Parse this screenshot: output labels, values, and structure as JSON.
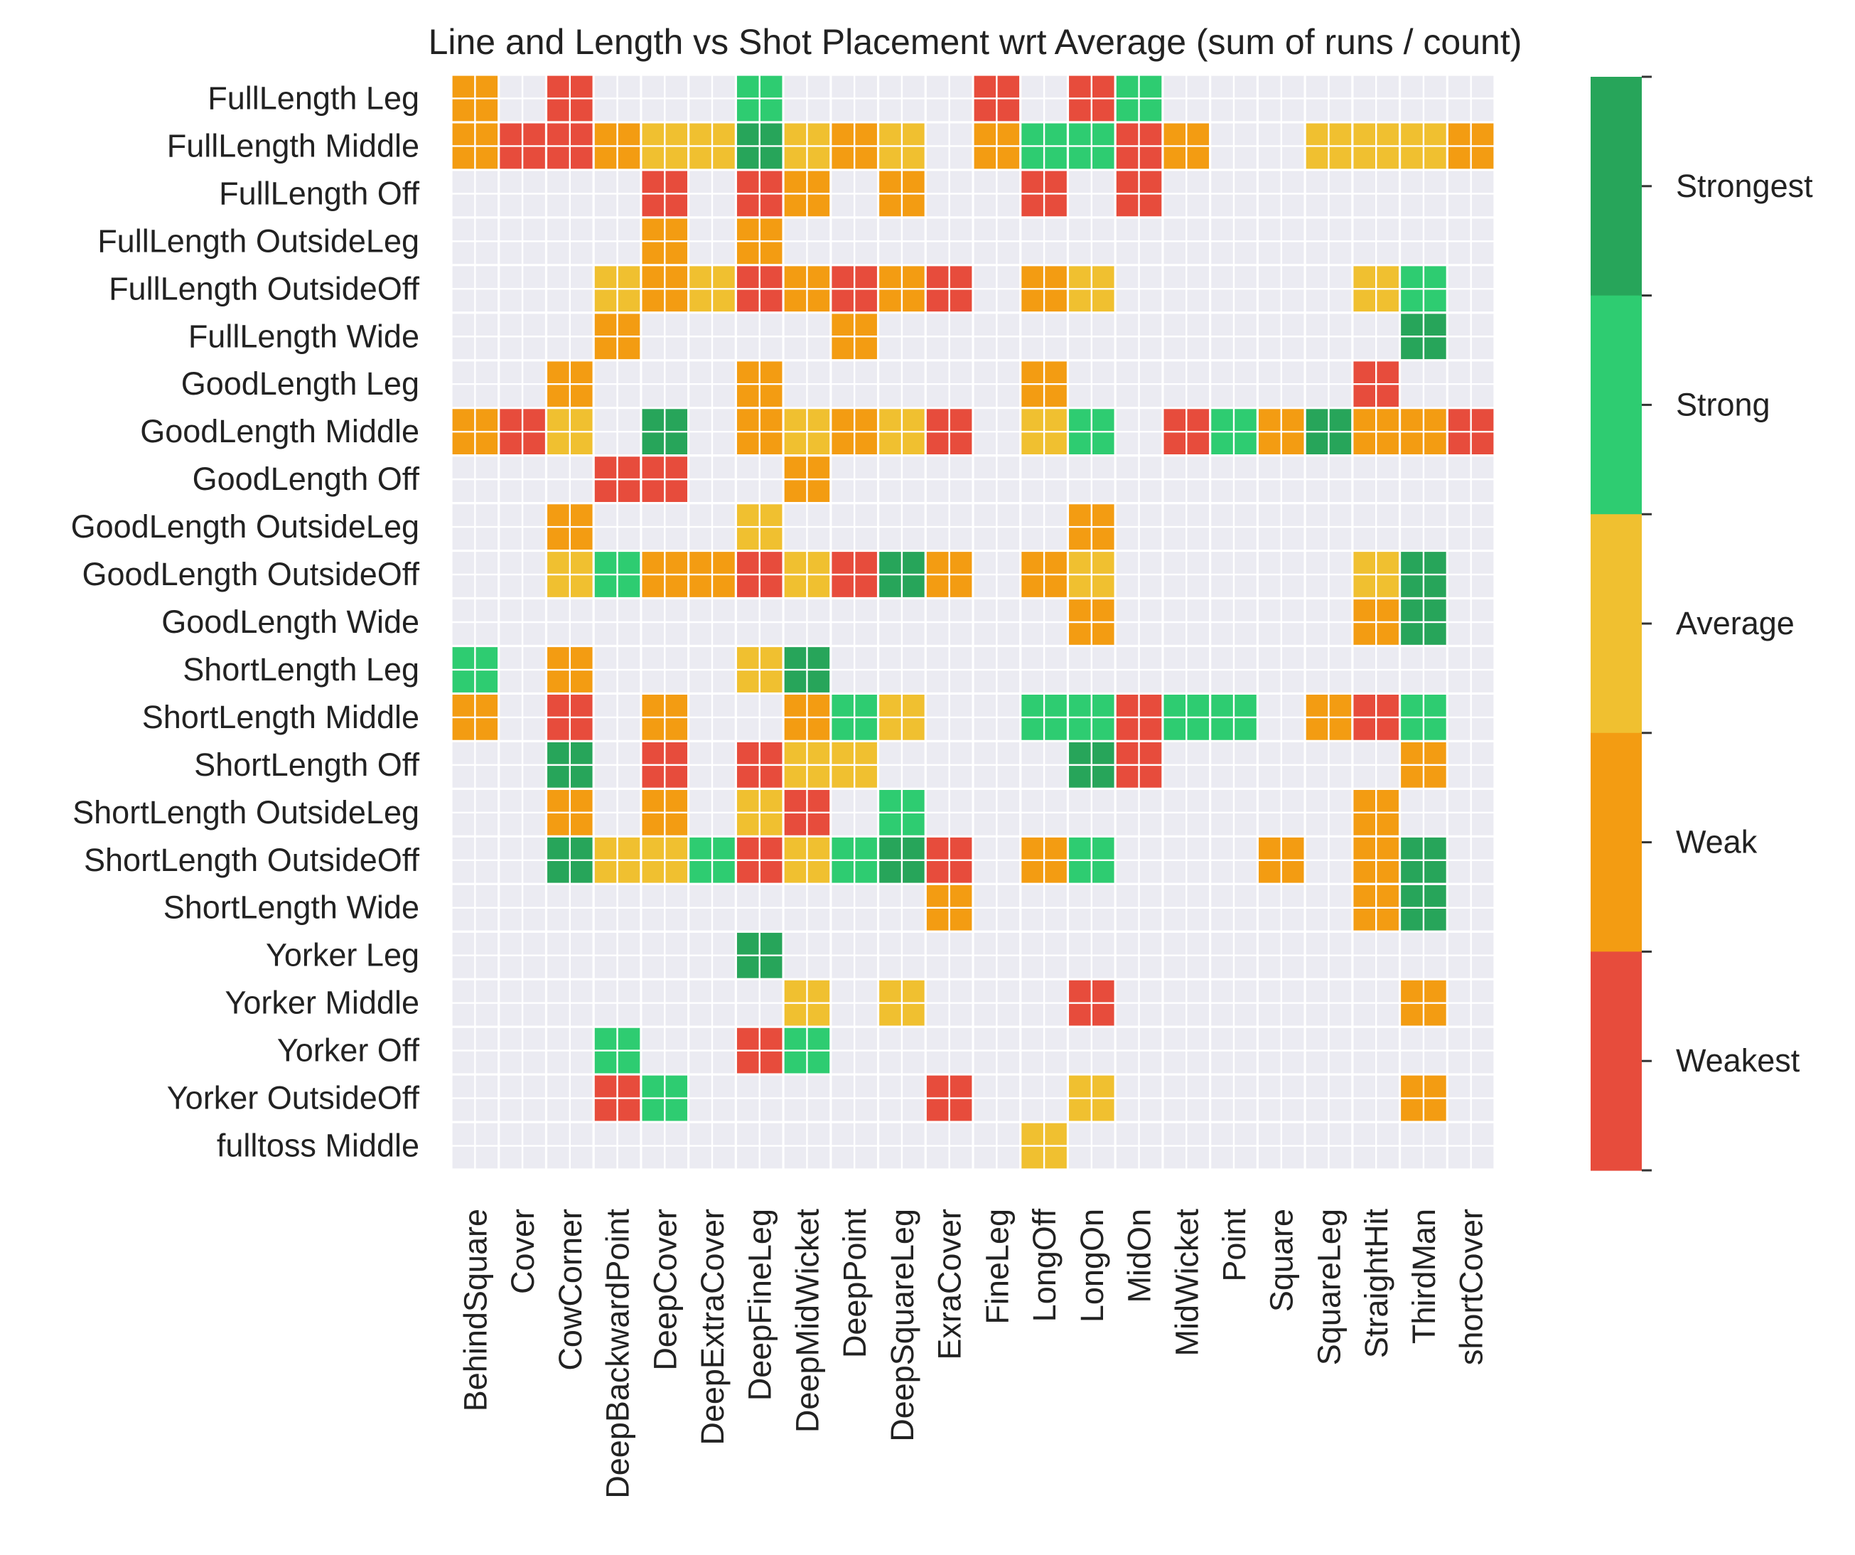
{
  "chart_data": {
    "type": "heatmap",
    "title": "Line and Length vs Shot Placement wrt Average (sum of runs / count)",
    "xlabel": "",
    "ylabel": "",
    "rows": [
      "FullLength Leg",
      "FullLength Middle",
      "FullLength Off",
      "FullLength OutsideLeg",
      "FullLength OutsideOff",
      "FullLength Wide",
      "GoodLength Leg",
      "GoodLength Middle",
      "GoodLength Off",
      "GoodLength OutsideLeg",
      "GoodLength OutsideOff",
      "GoodLength Wide",
      "ShortLength Leg",
      "ShortLength Middle",
      "ShortLength Off",
      "ShortLength OutsideLeg",
      "ShortLength OutsideOff",
      "ShortLength Wide",
      "Yorker Leg",
      "Yorker Middle",
      "Yorker Off",
      "Yorker OutsideOff",
      "fulltoss Middle"
    ],
    "columns": [
      "BehindSquare",
      "Cover",
      "CowCorner",
      "DeepBackwardPoint",
      "DeepCover",
      "DeepExtraCover",
      "DeepFineLeg",
      "DeepMidWicket",
      "DeepPoint",
      "DeepSquareLeg",
      "ExraCover",
      "FineLeg",
      "LongOff",
      "LongOn",
      "MidOn",
      "MidWicket",
      "Point",
      "Square",
      "SquareLeg",
      "StraightHit",
      "ThirdMan",
      "shortCover"
    ],
    "value_scale": {
      "1": "Weakest",
      "2": "Weak",
      "3": "Average",
      "4": "Strong",
      "5": "Strongest"
    },
    "values": [
      [
        2,
        0,
        1,
        0,
        0,
        0,
        4,
        0,
        0,
        0,
        0,
        1,
        0,
        1,
        4,
        0,
        0,
        0,
        0,
        0,
        0,
        0
      ],
      [
        2,
        1,
        1,
        2,
        3,
        3,
        5,
        3,
        2,
        3,
        0,
        2,
        4,
        4,
        1,
        2,
        0,
        0,
        3,
        3,
        3,
        2
      ],
      [
        0,
        0,
        0,
        0,
        1,
        0,
        1,
        2,
        0,
        2,
        0,
        0,
        1,
        0,
        1,
        0,
        0,
        0,
        0,
        0,
        0,
        0
      ],
      [
        0,
        0,
        0,
        0,
        2,
        0,
        2,
        0,
        0,
        0,
        0,
        0,
        0,
        0,
        0,
        0,
        0,
        0,
        0,
        0,
        0,
        0
      ],
      [
        0,
        0,
        0,
        3,
        2,
        3,
        1,
        2,
        1,
        2,
        1,
        0,
        2,
        3,
        0,
        0,
        0,
        0,
        0,
        3,
        4,
        0
      ],
      [
        0,
        0,
        0,
        2,
        0,
        0,
        0,
        0,
        2,
        0,
        0,
        0,
        0,
        0,
        0,
        0,
        0,
        0,
        0,
        0,
        5,
        0
      ],
      [
        0,
        0,
        2,
        0,
        0,
        0,
        2,
        0,
        0,
        0,
        0,
        0,
        2,
        0,
        0,
        0,
        0,
        0,
        0,
        1,
        0,
        0
      ],
      [
        2,
        1,
        3,
        0,
        5,
        0,
        2,
        3,
        2,
        3,
        1,
        0,
        3,
        4,
        0,
        1,
        4,
        2,
        5,
        2,
        2,
        1
      ],
      [
        0,
        0,
        0,
        1,
        1,
        0,
        0,
        2,
        0,
        0,
        0,
        0,
        0,
        0,
        0,
        0,
        0,
        0,
        0,
        0,
        0,
        0
      ],
      [
        0,
        0,
        2,
        0,
        0,
        0,
        3,
        0,
        0,
        0,
        0,
        0,
        0,
        2,
        0,
        0,
        0,
        0,
        0,
        0,
        0,
        0
      ],
      [
        0,
        0,
        3,
        4,
        2,
        2,
        1,
        3,
        1,
        5,
        2,
        0,
        2,
        3,
        0,
        0,
        0,
        0,
        0,
        3,
        5,
        0
      ],
      [
        0,
        0,
        0,
        0,
        0,
        0,
        0,
        0,
        0,
        0,
        0,
        0,
        0,
        2,
        0,
        0,
        0,
        0,
        0,
        2,
        5,
        0
      ],
      [
        4,
        0,
        2,
        0,
        0,
        0,
        3,
        5,
        0,
        0,
        0,
        0,
        0,
        0,
        0,
        0,
        0,
        0,
        0,
        0,
        0,
        0
      ],
      [
        2,
        0,
        1,
        0,
        2,
        0,
        0,
        2,
        4,
        3,
        0,
        0,
        4,
        4,
        1,
        4,
        4,
        0,
        2,
        1,
        4,
        0
      ],
      [
        0,
        0,
        5,
        0,
        1,
        0,
        1,
        3,
        3,
        0,
        0,
        0,
        0,
        5,
        1,
        0,
        0,
        0,
        0,
        0,
        2,
        0
      ],
      [
        0,
        0,
        2,
        0,
        2,
        0,
        3,
        1,
        0,
        4,
        0,
        0,
        0,
        0,
        0,
        0,
        0,
        0,
        0,
        2,
        0,
        0
      ],
      [
        0,
        0,
        5,
        3,
        3,
        4,
        1,
        3,
        4,
        5,
        1,
        0,
        2,
        4,
        0,
        0,
        0,
        2,
        0,
        2,
        5,
        0
      ],
      [
        0,
        0,
        0,
        0,
        0,
        0,
        0,
        0,
        0,
        0,
        2,
        0,
        0,
        0,
        0,
        0,
        0,
        0,
        0,
        2,
        5,
        0
      ],
      [
        0,
        0,
        0,
        0,
        0,
        0,
        5,
        0,
        0,
        0,
        0,
        0,
        0,
        0,
        0,
        0,
        0,
        0,
        0,
        0,
        0,
        0
      ],
      [
        0,
        0,
        0,
        0,
        0,
        0,
        0,
        3,
        0,
        3,
        0,
        0,
        0,
        1,
        0,
        0,
        0,
        0,
        0,
        0,
        2,
        0
      ],
      [
        0,
        0,
        0,
        4,
        0,
        0,
        1,
        4,
        0,
        0,
        0,
        0,
        0,
        0,
        0,
        0,
        0,
        0,
        0,
        0,
        0,
        0
      ],
      [
        0,
        0,
        0,
        1,
        4,
        0,
        0,
        0,
        0,
        0,
        1,
        0,
        0,
        3,
        0,
        0,
        0,
        0,
        0,
        0,
        2,
        0
      ],
      [
        0,
        0,
        0,
        0,
        0,
        0,
        0,
        0,
        0,
        0,
        0,
        0,
        3,
        0,
        0,
        0,
        0,
        0,
        0,
        0,
        0,
        0
      ]
    ],
    "colorbar": {
      "labels": [
        "Strongest",
        "Strong",
        "Average",
        "Weak",
        "Weakest"
      ],
      "colors": [
        "#27a55a",
        "#2ecc71",
        "#f0c030",
        "#f39c12",
        "#e74c3c"
      ]
    },
    "colors": {
      "background": "#ebebf2",
      "grid": "#ffffff",
      "weakest": "#e74c3c",
      "weak": "#f39c12",
      "average": "#f0c030",
      "strong": "#2ecc71",
      "strongest": "#27a55a"
    }
  }
}
